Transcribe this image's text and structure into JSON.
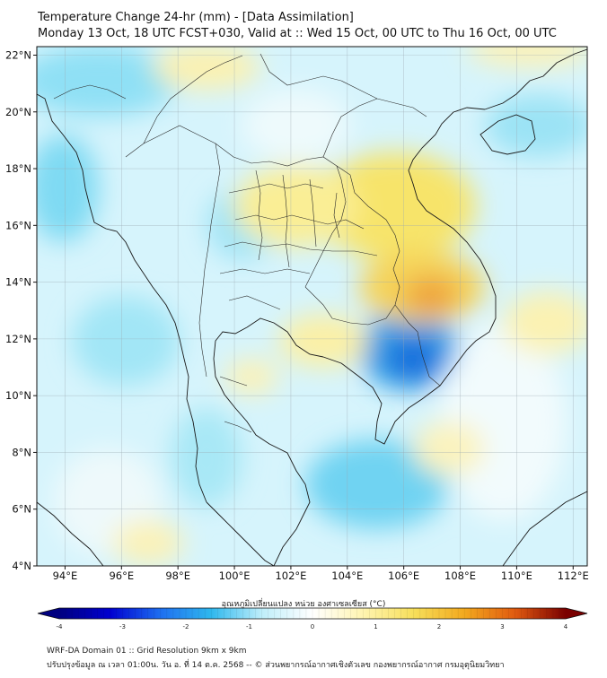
{
  "title": {
    "line1": "Temperature Change 24-hr (mm) - [Data Assimilation]",
    "line2": "Monday 13 Oct, 18 UTC FCST+030, Valid at :: Wed 15 Oct, 00 UTC to Thu 16 Oct, 00 UTC"
  },
  "axes": {
    "lat_ticks": [
      "22°N",
      "20°N",
      "18°N",
      "16°N",
      "14°N",
      "12°N",
      "10°N",
      "8°N",
      "6°N",
      "4°N"
    ],
    "lon_ticks": [
      "94°E",
      "96°E",
      "98°E",
      "100°E",
      "102°E",
      "104°E",
      "106°E",
      "108°E",
      "110°E",
      "112°E"
    ],
    "lat_range": [
      4,
      22.3
    ],
    "lon_range": [
      93,
      112.5
    ],
    "grid": true
  },
  "colorbar": {
    "label": "อุณหภูมิเปลี่ยนแปลง หน่วย องศาเซลเซียส (°C)",
    "ticks": [
      "-4",
      "-3",
      "-2",
      "-1",
      "0",
      "1",
      "2",
      "3",
      "4"
    ],
    "range": [
      -4,
      4
    ],
    "colors": [
      "#000080",
      "#0000d0",
      "#1e6ff0",
      "#2fb8ee",
      "#bfeefa",
      "#ffffff",
      "#fff4b0",
      "#f7df5a",
      "#f3a91e",
      "#e05a10",
      "#7a0000"
    ]
  },
  "anomalies": [
    {
      "region": "eastern Laos / Vietnam border",
      "sign": "warm",
      "value": 1.2
    },
    {
      "region": "northern Thailand / Laos",
      "sign": "warm",
      "value": 0.5
    },
    {
      "region": "Gulf of Thailand (west)",
      "sign": "warm",
      "value": 0.4
    },
    {
      "region": "southern Cambodia / Mekong",
      "sign": "cool",
      "value": -1.3
    },
    {
      "region": "South China Sea (south)",
      "sign": "cool",
      "value": -0.7
    },
    {
      "region": "Andaman Sea",
      "sign": "cool",
      "value": -0.5
    }
  ],
  "footer": {
    "line1": "WRF-DA Domain 01 :: Grid Resolution 9km x 9km",
    "line2": "ปรับปรุงข้อมูล ณ เวลา 01:00น. วัน อ. ที่ 14 ต.ค. 2568 -- © ส่วนพยากรณ์อากาศเชิงตัวเลข กองพยากรณ์อากาศ กรมอุตุนิยมวิทยา"
  }
}
